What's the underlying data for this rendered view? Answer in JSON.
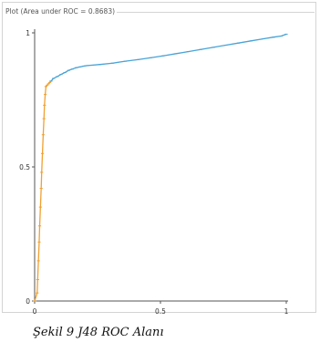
{
  "chart_data": {
    "type": "line",
    "title": "Plot (Area under ROC = 0.8683)",
    "xlim": [
      0,
      1
    ],
    "ylim": [
      0,
      1
    ],
    "x_ticks": [
      "0",
      "0.5",
      "1"
    ],
    "y_ticks": [
      "0",
      "0.5",
      "1"
    ],
    "grid": false,
    "colors": {
      "orange": "#f0a030",
      "blue": "#4aa3d6",
      "axis": "#555555"
    },
    "series": [
      {
        "color": "orange",
        "points": [
          [
            0.0,
            0.0
          ],
          [
            0.01,
            0.03
          ],
          [
            0.012,
            0.08
          ],
          [
            0.015,
            0.15
          ],
          [
            0.018,
            0.22
          ],
          [
            0.02,
            0.28
          ],
          [
            0.023,
            0.35
          ],
          [
            0.026,
            0.42
          ],
          [
            0.028,
            0.48
          ],
          [
            0.031,
            0.55
          ],
          [
            0.034,
            0.62
          ],
          [
            0.037,
            0.68
          ],
          [
            0.039,
            0.73
          ],
          [
            0.042,
            0.77
          ],
          [
            0.045,
            0.8
          ],
          [
            0.05,
            0.805
          ],
          [
            0.055,
            0.81
          ],
          [
            0.06,
            0.815
          ],
          [
            0.065,
            0.82
          ]
        ]
      },
      {
        "color": "blue",
        "points": [
          [
            0.065,
            0.82
          ],
          [
            0.075,
            0.83
          ],
          [
            0.09,
            0.837
          ],
          [
            0.105,
            0.845
          ],
          [
            0.12,
            0.852
          ],
          [
            0.135,
            0.86
          ],
          [
            0.15,
            0.865
          ],
          [
            0.165,
            0.87
          ],
          [
            0.18,
            0.873
          ],
          [
            0.195,
            0.876
          ],
          [
            0.21,
            0.878
          ],
          [
            0.26,
            0.882
          ],
          [
            0.31,
            0.887
          ],
          [
            0.36,
            0.894
          ],
          [
            0.41,
            0.9
          ],
          [
            0.46,
            0.907
          ],
          [
            0.51,
            0.914
          ],
          [
            0.56,
            0.922
          ],
          [
            0.61,
            0.93
          ],
          [
            0.66,
            0.938
          ],
          [
            0.71,
            0.946
          ],
          [
            0.76,
            0.954
          ],
          [
            0.81,
            0.962
          ],
          [
            0.86,
            0.97
          ],
          [
            0.91,
            0.978
          ],
          [
            0.95,
            0.984
          ],
          [
            0.98,
            0.988
          ],
          [
            1.0,
            0.995
          ]
        ]
      }
    ]
  },
  "caption": "Şekil 9 J48 ROC Alanı"
}
